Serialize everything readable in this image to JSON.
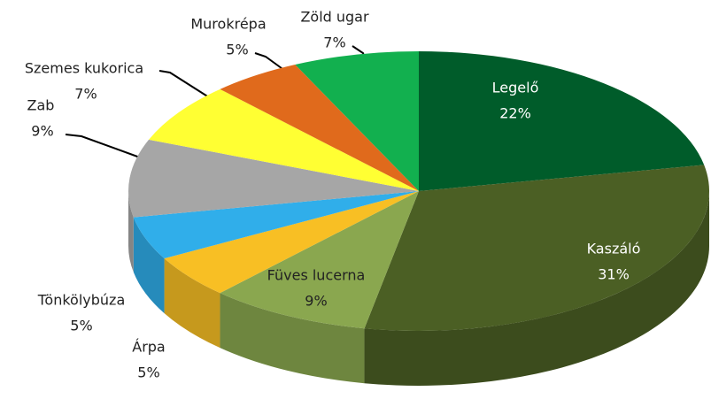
{
  "chart_data": {
    "type": "pie",
    "categories": [
      "Legelő",
      "Kaszáló",
      "Füves lucerna",
      "Árpa",
      "Tönkölybúza",
      "Zab",
      "Szemes kukorica",
      "Murokrépa",
      "Zöld ugar"
    ],
    "values": [
      22,
      31,
      9,
      5,
      5,
      9,
      7,
      5,
      7
    ],
    "value_labels": [
      "22%",
      "31%",
      "9%",
      "5%",
      "5%",
      "9%",
      "7%",
      "5%",
      "7%"
    ],
    "colors": [
      "#005c2a",
      "#4b5f24",
      "#8aa74f",
      "#f8bf24",
      "#30aeea",
      "#a6a6a6",
      "#ffff33",
      "#e06a1c",
      "#12b04f"
    ]
  }
}
